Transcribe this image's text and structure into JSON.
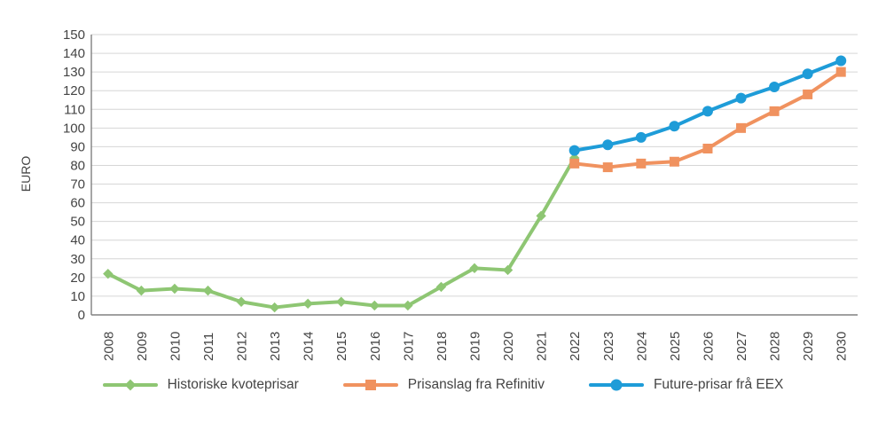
{
  "style": {
    "background": "#ffffff",
    "grid_color": "#d6d6d6",
    "axis_color": "#808080",
    "text_color": "#444444",
    "green": "#8ec673",
    "orange": "#f0925f",
    "blue": "#1e9cd8"
  },
  "chart_data": {
    "type": "line",
    "title": "",
    "xlabel": "",
    "ylabel": "EURO",
    "ylim": [
      0,
      150
    ],
    "ytick_step": 10,
    "yticks": [
      0,
      10,
      20,
      30,
      40,
      50,
      60,
      70,
      80,
      90,
      100,
      110,
      120,
      130,
      140,
      150
    ],
    "grid": "horizontal",
    "legend_position": "bottom",
    "categories": [
      "2008",
      "2009",
      "2010",
      "2011",
      "2012",
      "2013",
      "2014",
      "2015",
      "2016",
      "2017",
      "2018",
      "2019",
      "2020",
      "2021",
      "2022",
      "2023",
      "2024",
      "2025",
      "2026",
      "2027",
      "2028",
      "2029",
      "2030"
    ],
    "series": [
      {
        "name": "Historiske kvoteprisar",
        "color": "#8ec673",
        "marker": "diamond",
        "values": [
          22,
          13,
          14,
          13,
          7,
          4,
          6,
          7,
          5,
          5,
          15,
          25,
          24,
          53,
          84,
          null,
          null,
          null,
          null,
          null,
          null,
          null,
          null
        ]
      },
      {
        "name": "Prisanslag fra Refinitiv",
        "color": "#f0925f",
        "marker": "square",
        "values": [
          null,
          null,
          null,
          null,
          null,
          null,
          null,
          null,
          null,
          null,
          null,
          null,
          null,
          null,
          81,
          79,
          81,
          82,
          89,
          100,
          109,
          118,
          130
        ]
      },
      {
        "name": "Future-prisar frå EEX",
        "color": "#1e9cd8",
        "marker": "circle",
        "values": [
          null,
          null,
          null,
          null,
          null,
          null,
          null,
          null,
          null,
          null,
          null,
          null,
          null,
          null,
          88,
          91,
          95,
          101,
          109,
          116,
          122,
          129,
          136
        ]
      }
    ]
  }
}
